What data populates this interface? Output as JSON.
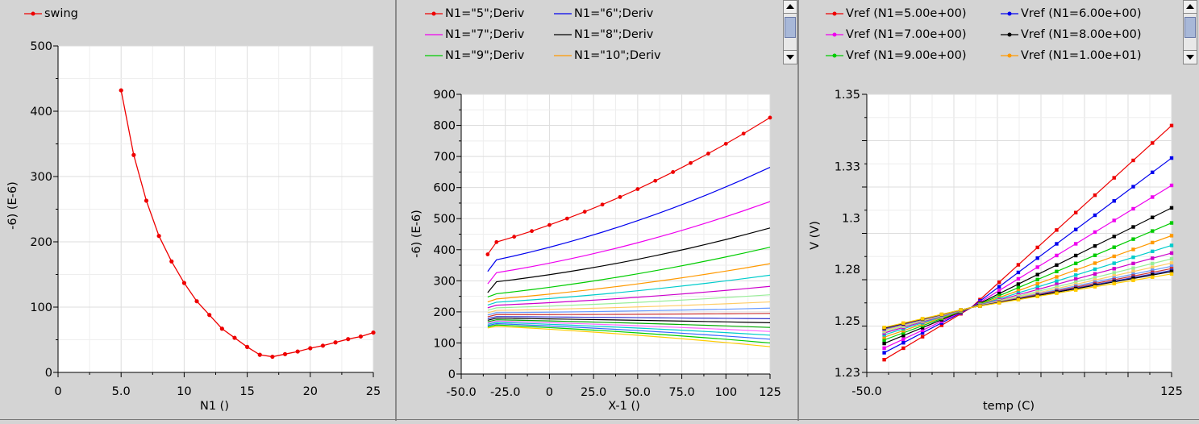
{
  "chart_data": [
    {
      "type": "line",
      "xlabel": "N1 ()",
      "ylabel": "-6) (E-6)",
      "xlim": [
        0,
        25
      ],
      "ylim": [
        0,
        500
      ],
      "xticks": [
        "0",
        "5.0",
        "10",
        "15",
        "20",
        "25"
      ],
      "yticks": [
        "0",
        "100",
        "200",
        "300",
        "400",
        "500"
      ],
      "grid": true,
      "legend": [
        "swing"
      ],
      "legend_position": "top-left",
      "series": [
        {
          "name": "swing",
          "color": "#ee0000",
          "x": [
            5,
            6,
            7,
            8,
            9,
            10,
            11,
            12,
            13,
            14,
            15,
            16,
            17,
            18,
            19,
            20,
            21,
            22,
            23,
            24,
            25
          ],
          "values": [
            432,
            333,
            263,
            209,
            170,
            137,
            109,
            88,
            67,
            53,
            39,
            27,
            24,
            28,
            32,
            37,
            41,
            46,
            51,
            55,
            61
          ]
        }
      ]
    },
    {
      "type": "line",
      "xlabel": "X-1 ()",
      "ylabel": "-6) (E-6)",
      "xlim": [
        -50,
        125
      ],
      "ylim": [
        0,
        900
      ],
      "xticks": [
        "-50.0",
        "-25.0",
        "0",
        "25.0",
        "50.0",
        "75.0",
        "100",
        "125"
      ],
      "yticks": [
        "0",
        "100",
        "200",
        "300",
        "400",
        "500",
        "600",
        "700",
        "800",
        "900"
      ],
      "grid": true,
      "legend_position": "top",
      "legend": [
        "N1=\"5\";Deriv",
        "N1=\"6\";Deriv",
        "N1=\"7\";Deriv",
        "N1=\"8\";Deriv",
        "N1=\"9\";Deriv",
        "N1=\"10\";Deriv"
      ],
      "x": [
        -35,
        -30,
        -20,
        -10,
        0,
        10,
        20,
        30,
        40,
        50,
        60,
        70,
        80,
        90,
        100,
        110,
        125
      ],
      "series": [
        {
          "name": "N1=\"5\";Deriv",
          "color": "#ee0000",
          "markers": true,
          "start": 385,
          "end": 825
        },
        {
          "name": "N1=\"6\";Deriv",
          "color": "#0000ee",
          "start": 330,
          "end": 665
        },
        {
          "name": "N1=\"7\";Deriv",
          "color": "#ee00ee",
          "start": 290,
          "end": 555
        },
        {
          "name": "N1=\"8\";Deriv",
          "color": "#000000",
          "start": 262,
          "end": 470
        },
        {
          "name": "N1=\"9\";Deriv",
          "color": "#00cc00",
          "start": 248,
          "end": 408
        },
        {
          "name": "N1=\"10\";Deriv",
          "color": "#ff9900",
          "start": 232,
          "end": 355
        },
        {
          "color": "#00cccc",
          "start": 222,
          "end": 318
        },
        {
          "color": "#cc00cc",
          "start": 213,
          "end": 282
        },
        {
          "color": "#99ee99",
          "start": 205,
          "end": 255
        },
        {
          "color": "#ffcc66",
          "start": 197,
          "end": 232
        },
        {
          "color": "#6699ff",
          "start": 190,
          "end": 212
        },
        {
          "color": "#cc3333",
          "start": 184,
          "end": 195
        },
        {
          "color": "#3333cc",
          "start": 178,
          "end": 178
        },
        {
          "color": "#000000",
          "start": 173,
          "end": 165
        },
        {
          "color": "#00aa00",
          "start": 168,
          "end": 150
        },
        {
          "color": "#ff66ff",
          "start": 164,
          "end": 137
        },
        {
          "color": "#00cccc",
          "start": 160,
          "end": 125
        },
        {
          "color": "#3366ff",
          "start": 156,
          "end": 112
        },
        {
          "color": "#00cc00",
          "start": 152,
          "end": 100
        },
        {
          "color": "#ffcc00",
          "start": 148,
          "end": 88
        }
      ]
    },
    {
      "type": "line",
      "xlabel": "temp (C)",
      "ylabel": "V (V)",
      "xlim": [
        -50,
        125
      ],
      "ylim": [
        1.23,
        1.35
      ],
      "xticks": [
        "-50.0",
        "125"
      ],
      "yticks": [
        "1.23",
        "1.25",
        "1.28",
        "1.3",
        "1.33",
        "1.35"
      ],
      "grid": true,
      "legend_position": "top",
      "legend": [
        "Vref (N1=5.00e+00)",
        "Vref (N1=6.00e+00)",
        "Vref (N1=7.00e+00)",
        "Vref (N1=8.00e+00)",
        "Vref (N1=9.00e+00)",
        "Vref (N1=1.00e+01)"
      ],
      "x": [
        -40,
        125
      ],
      "pivot": [
        10,
        1.258
      ],
      "series": [
        {
          "name": "Vref (N1=5.00e+00)",
          "color": "#ee0000",
          "markers": true,
          "start": 1.2355,
          "end": 1.3365
        },
        {
          "name": "Vref (N1=6.00e+00)",
          "color": "#0000ee",
          "markers": true,
          "start": 1.2385,
          "end": 1.3225
        },
        {
          "name": "Vref (N1=7.00e+00)",
          "color": "#ee00ee",
          "markers": true,
          "start": 1.2405,
          "end": 1.3107
        },
        {
          "name": "Vref (N1=8.00e+00)",
          "color": "#000000",
          "markers": true,
          "start": 1.2425,
          "end": 1.301
        },
        {
          "name": "Vref (N1=9.00e+00)",
          "color": "#00cc00",
          "markers": true,
          "start": 1.244,
          "end": 1.2945
        },
        {
          "name": "Vref (N1=1.00e+01)",
          "color": "#ff9900",
          "markers": true,
          "start": 1.2452,
          "end": 1.289
        },
        {
          "color": "#00cccc",
          "markers": true,
          "start": 1.2462,
          "end": 1.2848
        },
        {
          "color": "#cc00cc",
          "markers": true,
          "start": 1.247,
          "end": 1.2815
        },
        {
          "color": "#99ee99",
          "markers": true,
          "start": 1.2476,
          "end": 1.279
        },
        {
          "color": "#ffcc66",
          "markers": true,
          "start": 1.2481,
          "end": 1.2772
        },
        {
          "color": "#6699ff",
          "markers": true,
          "start": 1.2485,
          "end": 1.2758
        },
        {
          "color": "#cc3333",
          "markers": true,
          "start": 1.2488,
          "end": 1.2748
        },
        {
          "color": "#3333cc",
          "markers": true,
          "start": 1.249,
          "end": 1.274
        },
        {
          "color": "#000000",
          "markers": true,
          "start": 1.2492,
          "end": 1.2735
        },
        {
          "color": "#ffcc00",
          "markers": true,
          "start": 1.2494,
          "end": 1.2725
        }
      ]
    }
  ]
}
